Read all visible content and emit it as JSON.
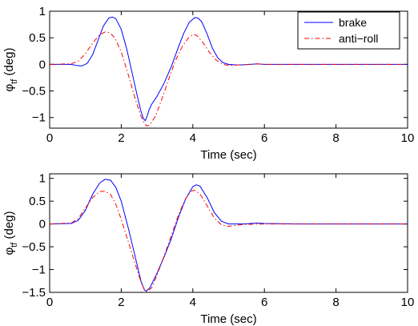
{
  "chart_data": [
    {
      "type": "line",
      "xlabel": "Time (sec)",
      "ylabel": "φ",
      "ylabel_sub": "tf",
      "ylabel_unit": "(deg)",
      "xlim": [
        0,
        10
      ],
      "ylim": [
        -1.2,
        1.0
      ],
      "xticks": [
        0,
        2,
        4,
        6,
        8,
        10
      ],
      "yticks": [
        1,
        0.5,
        0,
        -0.5,
        -1
      ],
      "ytick_labels": [
        "1",
        "0.5",
        "0",
        "−0.5",
        "−1"
      ],
      "grid": false,
      "legend": "top-right",
      "series": [
        {
          "name": "brake",
          "color": "#0000ff",
          "dash": "solid",
          "x": [
            0,
            0.6,
            0.75,
            0.9,
            1.05,
            1.2,
            1.35,
            1.5,
            1.65,
            1.75,
            1.85,
            2.0,
            2.15,
            2.3,
            2.45,
            2.55,
            2.62,
            2.67,
            2.72,
            2.78,
            2.85,
            3.0,
            3.2,
            3.4,
            3.6,
            3.75,
            3.9,
            4.05,
            4.15,
            4.25,
            4.4,
            4.55,
            4.7,
            4.85,
            5.0,
            5.2,
            5.4,
            5.8,
            6.0,
            7.0,
            10.0
          ],
          "y": [
            0,
            0,
            -0.02,
            -0.03,
            0.02,
            0.18,
            0.45,
            0.72,
            0.87,
            0.89,
            0.86,
            0.66,
            0.3,
            -0.15,
            -0.6,
            -0.88,
            -1.02,
            -1.06,
            -0.98,
            -0.85,
            -0.75,
            -0.6,
            -0.35,
            -0.04,
            0.33,
            0.59,
            0.79,
            0.88,
            0.87,
            0.8,
            0.57,
            0.3,
            0.12,
            0.03,
            0.0,
            -0.01,
            -0.01,
            0.01,
            0.0,
            0.0,
            0.0
          ]
        },
        {
          "name": "anti−roll",
          "color": "#ff0000",
          "dash": "6 3 1.5 3",
          "x": [
            0,
            0.6,
            0.8,
            1.0,
            1.2,
            1.4,
            1.55,
            1.65,
            1.75,
            1.85,
            2.0,
            2.2,
            2.4,
            2.55,
            2.65,
            2.72,
            2.8,
            2.95,
            3.1,
            3.3,
            3.5,
            3.7,
            3.9,
            4.0,
            4.1,
            4.25,
            4.45,
            4.65,
            4.85,
            5.0,
            5.3,
            5.8,
            6.0,
            7.0,
            10.0
          ],
          "y": [
            0,
            0.01,
            0.06,
            0.2,
            0.4,
            0.56,
            0.61,
            0.6,
            0.55,
            0.46,
            0.23,
            -0.2,
            -0.67,
            -0.97,
            -1.11,
            -1.16,
            -1.14,
            -0.98,
            -0.72,
            -0.33,
            0.05,
            0.33,
            0.52,
            0.56,
            0.55,
            0.44,
            0.24,
            0.08,
            0.0,
            -0.02,
            -0.01,
            0.01,
            0.0,
            0.0,
            0.0
          ]
        }
      ]
    },
    {
      "type": "line",
      "xlabel": "Time (sec)",
      "ylabel": "φ",
      "ylabel_sub": "tf",
      "ylabel_unit": "(deg)",
      "xlim": [
        0,
        10
      ],
      "ylim": [
        -1.5,
        1.1
      ],
      "xticks": [
        0,
        2,
        4,
        6,
        8,
        10
      ],
      "yticks": [
        1,
        0.5,
        0,
        -0.5,
        -1,
        -1.5
      ],
      "ytick_labels": [
        "1",
        "0.5",
        "0",
        "−0.5",
        "−1",
        "−1.5"
      ],
      "grid": false,
      "series": [
        {
          "name": "brake",
          "color": "#0000ff",
          "dash": "solid",
          "x": [
            0,
            0.6,
            0.8,
            1.0,
            1.2,
            1.4,
            1.55,
            1.7,
            1.85,
            2.0,
            2.2,
            2.4,
            2.55,
            2.65,
            2.7,
            2.8,
            3.0,
            3.2,
            3.4,
            3.6,
            3.8,
            4.0,
            4.1,
            4.2,
            4.4,
            4.6,
            4.8,
            5.0,
            5.4,
            5.8,
            6.0,
            7.0,
            10.0
          ],
          "y": [
            0,
            0.01,
            0.08,
            0.3,
            0.65,
            0.9,
            0.98,
            0.96,
            0.8,
            0.5,
            -0.1,
            -0.75,
            -1.25,
            -1.45,
            -1.47,
            -1.4,
            -1.08,
            -0.72,
            -0.32,
            0.15,
            0.55,
            0.82,
            0.86,
            0.83,
            0.58,
            0.25,
            0.06,
            0.0,
            0.0,
            0.02,
            0.01,
            0.0,
            0.0
          ]
        },
        {
          "name": "anti−roll",
          "color": "#ff0000",
          "dash": "6 3 1.5 3",
          "x": [
            0,
            0.6,
            0.8,
            1.0,
            1.2,
            1.4,
            1.55,
            1.7,
            1.85,
            2.0,
            2.2,
            2.4,
            2.55,
            2.65,
            2.72,
            2.85,
            3.0,
            3.2,
            3.4,
            3.6,
            3.8,
            3.95,
            4.05,
            4.2,
            4.4,
            4.6,
            4.8,
            5.0,
            5.4,
            6.0,
            7.0,
            10.0
          ],
          "y": [
            0,
            0.02,
            0.12,
            0.35,
            0.58,
            0.71,
            0.72,
            0.65,
            0.43,
            0.1,
            -0.4,
            -0.9,
            -1.27,
            -1.45,
            -1.49,
            -1.4,
            -1.12,
            -0.7,
            -0.25,
            0.2,
            0.56,
            0.72,
            0.74,
            0.66,
            0.4,
            0.13,
            -0.02,
            -0.05,
            -0.01,
            0.0,
            0.0,
            0.0
          ]
        }
      ]
    }
  ]
}
